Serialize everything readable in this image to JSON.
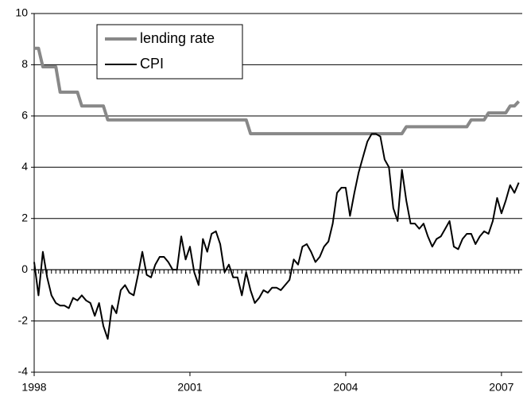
{
  "chart_data": {
    "type": "line",
    "x": [
      1998,
      1998.083,
      1998.167,
      1998.25,
      1998.333,
      1998.417,
      1998.5,
      1998.583,
      1998.667,
      1998.75,
      1998.833,
      1998.917,
      1999,
      1999.083,
      1999.167,
      1999.25,
      1999.333,
      1999.417,
      1999.5,
      1999.583,
      1999.667,
      1999.75,
      1999.833,
      1999.917,
      2000,
      2000.083,
      2000.167,
      2000.25,
      2000.333,
      2000.417,
      2000.5,
      2000.583,
      2000.667,
      2000.75,
      2000.833,
      2000.917,
      2001,
      2001.083,
      2001.167,
      2001.25,
      2001.333,
      2001.417,
      2001.5,
      2001.583,
      2001.667,
      2001.75,
      2001.833,
      2001.917,
      2002,
      2002.083,
      2002.167,
      2002.25,
      2002.333,
      2002.417,
      2002.5,
      2002.583,
      2002.667,
      2002.75,
      2002.833,
      2002.917,
      2003,
      2003.083,
      2003.167,
      2003.25,
      2003.333,
      2003.417,
      2003.5,
      2003.583,
      2003.667,
      2003.75,
      2003.833,
      2003.917,
      2004,
      2004.083,
      2004.167,
      2004.25,
      2004.333,
      2004.417,
      2004.5,
      2004.583,
      2004.667,
      2004.75,
      2004.833,
      2004.917,
      2005,
      2005.083,
      2005.167,
      2005.25,
      2005.333,
      2005.417,
      2005.5,
      2005.583,
      2005.667,
      2005.75,
      2005.833,
      2005.917,
      2006,
      2006.083,
      2006.167,
      2006.25,
      2006.333,
      2006.417,
      2006.5,
      2006.583,
      2006.667,
      2006.75,
      2006.833,
      2006.917,
      2007,
      2007.083,
      2007.167,
      2007.25,
      2007.333
    ],
    "series": [
      {
        "name": "lending rate",
        "color": "#888888",
        "width": 4,
        "values": [
          8.64,
          8.64,
          7.92,
          7.92,
          7.92,
          7.92,
          6.93,
          6.93,
          6.93,
          6.93,
          6.93,
          6.39,
          6.39,
          6.39,
          6.39,
          6.39,
          6.39,
          5.85,
          5.85,
          5.85,
          5.85,
          5.85,
          5.85,
          5.85,
          5.85,
          5.85,
          5.85,
          5.85,
          5.85,
          5.85,
          5.85,
          5.85,
          5.85,
          5.85,
          5.85,
          5.85,
          5.85,
          5.85,
          5.85,
          5.85,
          5.85,
          5.85,
          5.85,
          5.85,
          5.85,
          5.85,
          5.85,
          5.85,
          5.85,
          5.85,
          5.31,
          5.31,
          5.31,
          5.31,
          5.31,
          5.31,
          5.31,
          5.31,
          5.31,
          5.31,
          5.31,
          5.31,
          5.31,
          5.31,
          5.31,
          5.31,
          5.31,
          5.31,
          5.31,
          5.31,
          5.31,
          5.31,
          5.31,
          5.31,
          5.31,
          5.31,
          5.31,
          5.31,
          5.31,
          5.31,
          5.31,
          5.31,
          5.31,
          5.31,
          5.31,
          5.31,
          5.58,
          5.58,
          5.58,
          5.58,
          5.58,
          5.58,
          5.58,
          5.58,
          5.58,
          5.58,
          5.58,
          5.58,
          5.58,
          5.58,
          5.58,
          5.85,
          5.85,
          5.85,
          5.85,
          6.12,
          6.12,
          6.12,
          6.12,
          6.12,
          6.39,
          6.39,
          6.57
        ]
      },
      {
        "name": "CPI",
        "color": "#000000",
        "width": 2,
        "values": [
          0.3,
          -1.0,
          0.7,
          -0.3,
          -1.0,
          -1.3,
          -1.4,
          -1.4,
          -1.5,
          -1.1,
          -1.2,
          -1.0,
          -1.2,
          -1.3,
          -1.8,
          -1.3,
          -2.2,
          -2.7,
          -1.4,
          -1.7,
          -0.8,
          -0.6,
          -0.9,
          -1.0,
          -0.2,
          0.7,
          -0.2,
          -0.3,
          0.2,
          0.5,
          0.5,
          0.3,
          0.0,
          0.0,
          1.3,
          0.4,
          0.9,
          -0.1,
          -0.6,
          1.2,
          0.7,
          1.4,
          1.5,
          1.0,
          -0.1,
          0.2,
          -0.3,
          -0.3,
          -1.0,
          -0.1,
          -0.8,
          -1.3,
          -1.1,
          -0.8,
          -0.9,
          -0.7,
          -0.7,
          -0.8,
          -0.6,
          -0.4,
          0.4,
          0.2,
          0.9,
          1.0,
          0.7,
          0.3,
          0.5,
          0.9,
          1.1,
          1.8,
          3.0,
          3.2,
          3.2,
          2.1,
          3.0,
          3.8,
          4.4,
          5.0,
          5.3,
          5.3,
          5.2,
          4.3,
          4.0,
          2.4,
          1.9,
          3.9,
          2.7,
          1.8,
          1.8,
          1.6,
          1.8,
          1.3,
          0.9,
          1.2,
          1.3,
          1.6,
          1.9,
          0.9,
          0.8,
          1.2,
          1.4,
          1.4,
          1.0,
          1.3,
          1.5,
          1.4,
          1.9,
          2.8,
          2.2,
          2.7,
          3.3,
          3.0,
          3.4
        ]
      }
    ],
    "xlim": [
      1998,
      2007.4
    ],
    "xticks": [
      1998,
      2001,
      2004,
      2007
    ],
    "ylim": [
      -4,
      10
    ],
    "yticks": [
      -4,
      -2,
      0,
      2,
      4,
      6,
      8,
      10
    ],
    "grid": true,
    "legend": "upper left"
  }
}
